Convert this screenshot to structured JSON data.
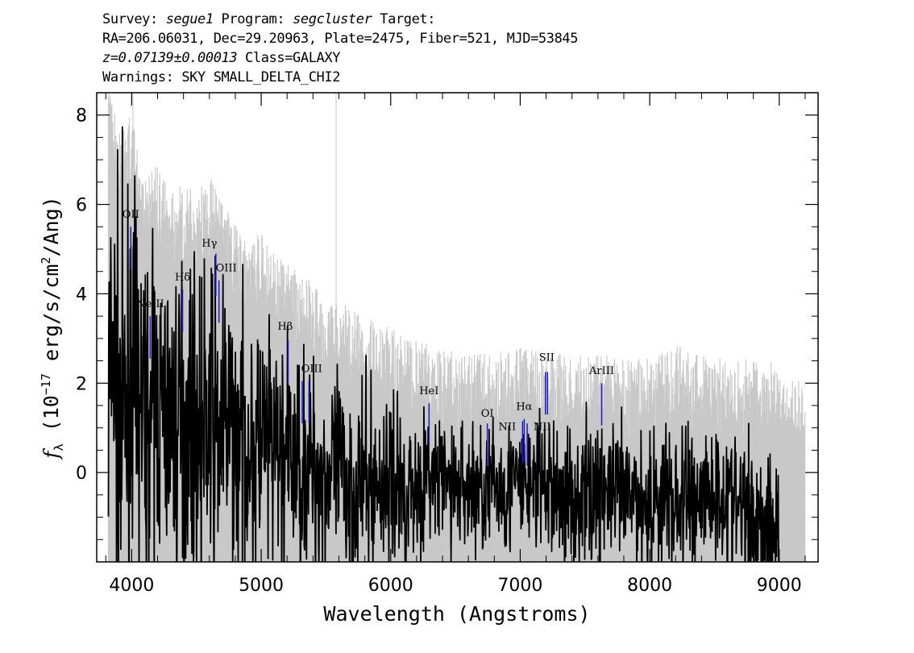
{
  "header": {
    "line1_a": "Survey: ",
    "survey": "segue1",
    "line1_b": " Program: ",
    "program": "segcluster",
    "line1_c": " Target:",
    "line2": "RA=206.06031, Dec=29.20963, Plate=2475, Fiber=521, MJD=53845",
    "redshift": "z=0.07139±0.00013",
    "line3_b": " Class=GALAXY",
    "line4": "Warnings: SKY SMALL_DELTA_CHI2"
  },
  "colors": {
    "flux": "#000000",
    "error": "#c8c8c8",
    "lines": "#1a1acc",
    "frame": "#000000"
  },
  "chart_data": {
    "type": "line",
    "title": "",
    "xlabel": "Wavelength (Angstroms)",
    "ylabel": "f_λ (10^-17 erg/s/cm²/Ang)",
    "xlim": [
      3730,
      9300
    ],
    "ylim": [
      -2.0,
      8.5
    ],
    "x_ticks": [
      4000,
      5000,
      6000,
      7000,
      8000,
      9000
    ],
    "y_ticks": [
      0,
      2,
      4,
      6,
      8
    ],
    "series": [
      {
        "role": "flux",
        "x": [
          3820,
          3850,
          3900,
          3950,
          4000,
          4050,
          4100,
          4150,
          4200,
          4250,
          4300,
          4350,
          4400,
          4450,
          4500,
          4550,
          4600,
          4650,
          4700,
          4750,
          4800,
          4850,
          4900,
          4950,
          5000,
          5100,
          5200,
          5300,
          5400,
          5500,
          5600,
          5700,
          5800,
          5900,
          6000,
          6100,
          6200,
          6300,
          6400,
          6500,
          6600,
          6700,
          6800,
          6900,
          7000,
          7100,
          7200,
          7300,
          7400,
          7500,
          7600,
          7700,
          7800,
          7900,
          8000,
          8100,
          8200,
          8300,
          8400,
          8500,
          8600,
          8700,
          8800,
          8900,
          9000
        ],
        "y": [
          1.5,
          2.8,
          1.2,
          1.0,
          2.5,
          1.8,
          1.2,
          1.5,
          1.6,
          1.1,
          1.5,
          0.9,
          1.3,
          1.4,
          1.1,
          0.8,
          1.3,
          0.9,
          1.2,
          1.0,
          0.7,
          0.8,
          0.6,
          0.5,
          0.6,
          0.4,
          0.3,
          0.2,
          0.1,
          0.0,
          -0.1,
          -0.3,
          -0.2,
          -0.3,
          -0.2,
          -0.4,
          -0.3,
          -0.1,
          -0.2,
          -0.3,
          -0.3,
          -0.4,
          -0.3,
          -0.3,
          -0.3,
          -0.2,
          -0.3,
          -0.5,
          -0.6,
          -0.5,
          -0.4,
          -0.4,
          -0.6,
          -0.6,
          -0.7,
          -0.5,
          -0.7,
          -0.6,
          -0.5,
          -0.4,
          -0.6,
          -0.8,
          -1.0,
          -1.0,
          -1.2
        ]
      },
      {
        "role": "error_upper",
        "x": [
          3820,
          3900,
          4000,
          4100,
          4200,
          4300,
          4400,
          4500,
          4600,
          4700,
          4800,
          4900,
          5000,
          5200,
          5400,
          5600,
          5800,
          6000,
          6200,
          6400,
          6600,
          6800,
          7000,
          7200,
          7400,
          7600,
          7800,
          8000,
          8200,
          8400,
          8600,
          8800,
          9000,
          9200
        ],
        "y": [
          7.5,
          6.5,
          6.8,
          5.5,
          5.6,
          5.0,
          5.2,
          5.0,
          5.4,
          4.8,
          4.3,
          4.0,
          4.1,
          3.4,
          3.0,
          2.6,
          2.2,
          2.0,
          1.7,
          1.5,
          1.4,
          1.4,
          1.6,
          1.5,
          1.3,
          1.5,
          1.3,
          1.3,
          1.6,
          1.4,
          1.4,
          1.3,
          1.2,
          0.8
        ]
      }
    ],
    "annotations": [
      {
        "label": "OII",
        "wavelength": 3993
      },
      {
        "label": "NeIII",
        "wavelength": 4143
      },
      {
        "label": "Hδ",
        "wavelength": 4393
      },
      {
        "label": "Hγ",
        "wavelength": 4650
      },
      {
        "label": "OIII",
        "wavelength": 4674
      },
      {
        "label": "Hβ",
        "wavelength": 5208
      },
      {
        "label": "OIII",
        "wavelength": 5317
      },
      {
        "label": "OIII",
        "wavelength": 5369
      },
      {
        "label": "HeI",
        "wavelength": 6296
      },
      {
        "label": "OI",
        "wavelength": 6746
      },
      {
        "label": "NII",
        "wavelength": 7018
      },
      {
        "label": "Hα",
        "wavelength": 7031
      },
      {
        "label": "NII",
        "wavelength": 7054
      },
      {
        "label": "SII",
        "wavelength": 7195
      },
      {
        "label": "SII",
        "wavelength": 7211
      },
      {
        "label": "ArIII",
        "wavelength": 7629
      }
    ]
  }
}
